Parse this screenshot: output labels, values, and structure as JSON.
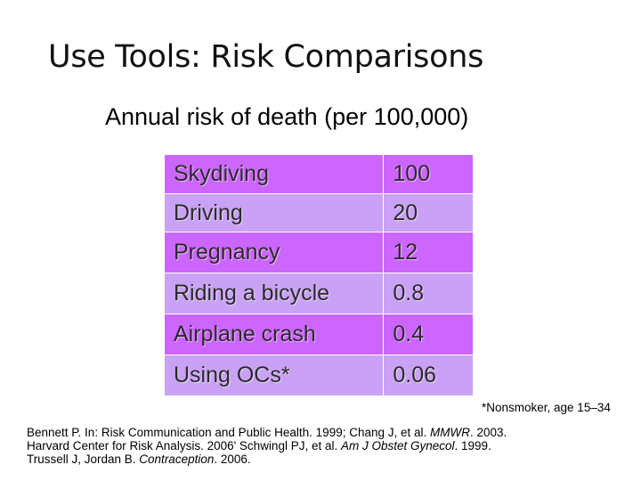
{
  "slide": {
    "title": "Use Tools: Risk Comparisons",
    "subtitle": "Annual risk of death (per 100,000)"
  },
  "table": {
    "rows": [
      {
        "activity": "Skydiving",
        "value": "100"
      },
      {
        "activity": "Driving",
        "value": "20"
      },
      {
        "activity": "Pregnancy",
        "value": "12"
      },
      {
        "activity": "Riding a bicycle",
        "value": "0.8"
      },
      {
        "activity": "Airplane crash",
        "value": "0.4"
      },
      {
        "activity": "Using OCs*",
        "value": "0.06"
      }
    ],
    "row_colors": [
      "#cc66ff",
      "#c9a2f6"
    ]
  },
  "footnote": "*Nonsmoker, age 15–34",
  "citation": {
    "l1a": "Bennett P. In: Risk Communication and Public Health. 1999; Chang J, et al. ",
    "l1b": "MMWR",
    "l1c": ". 2003.",
    "l2a": "Harvard Center for Risk Analysis. 2006' Schwingl PJ, et al. ",
    "l2b": "Am J Obstet Gynecol",
    "l2c": ". 1999.",
    "l3a": "Trussell J, Jordan B. ",
    "l3b": "Contraception",
    "l3c": ". 2006."
  }
}
